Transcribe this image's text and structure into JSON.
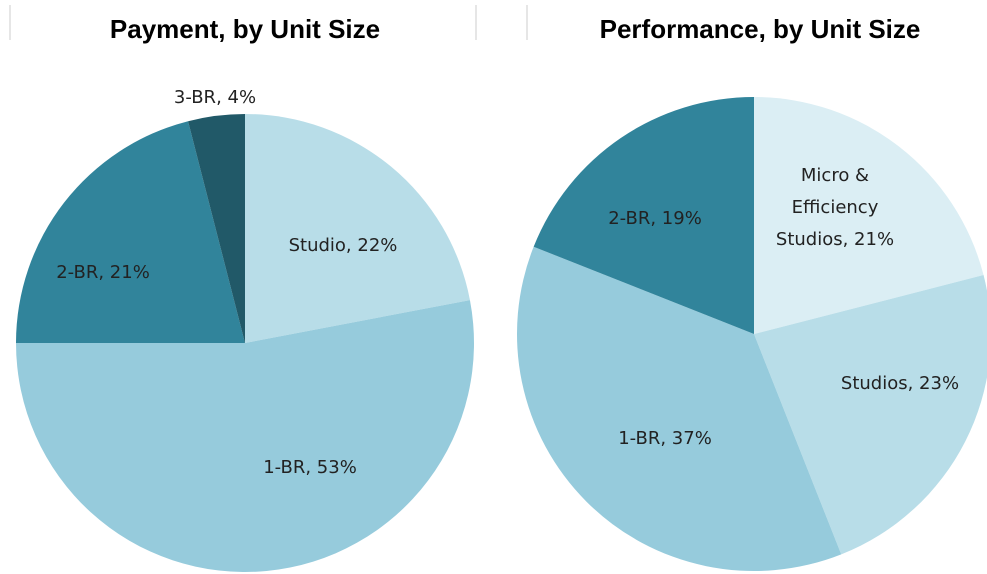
{
  "chart_data": [
    {
      "type": "pie",
      "title": "Payment, by Unit Size",
      "values": [
        22,
        53,
        21,
        4
      ],
      "value_labels": [
        "Studio, 22%",
        "1-BR, 53%",
        "2-BR, 21%",
        "3-BR, 4%"
      ],
      "colors": [
        "#b8dde8",
        "#96cbdc",
        "#31849b",
        "#215968"
      ]
    },
    {
      "type": "pie",
      "title": "Performance, by Unit Size",
      "values": [
        21,
        23,
        37,
        19
      ],
      "value_labels": [
        [
          "Micro &",
          "Efficiency",
          "Studios, 21%"
        ],
        "Studios, 23%",
        "1-BR, 37%",
        "2-BR, 19%"
      ],
      "colors": [
        "#dbeef4",
        "#b8dde8",
        "#96cbdc",
        "#31849b"
      ]
    }
  ]
}
